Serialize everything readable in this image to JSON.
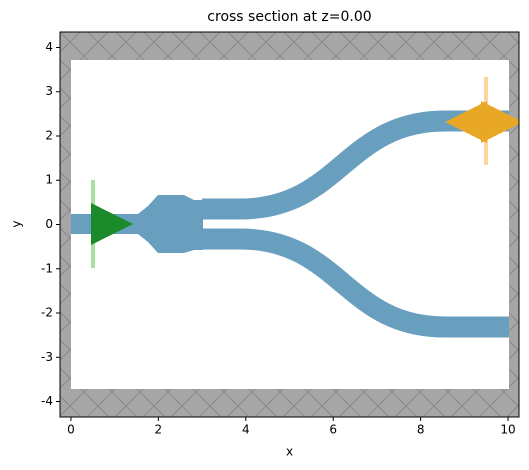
{
  "chart_data": {
    "type": "structure",
    "title": "cross section at z=0.00",
    "xlabel": "x",
    "ylabel": "y",
    "xlim": [
      -0.25,
      10.25
    ],
    "ylim": [
      -4.35,
      4.35
    ],
    "xticks": [
      0,
      2,
      4,
      6,
      8,
      10
    ],
    "yticks": [
      -4,
      -3,
      -2,
      -1,
      0,
      1,
      2,
      3,
      4
    ]
  }
}
